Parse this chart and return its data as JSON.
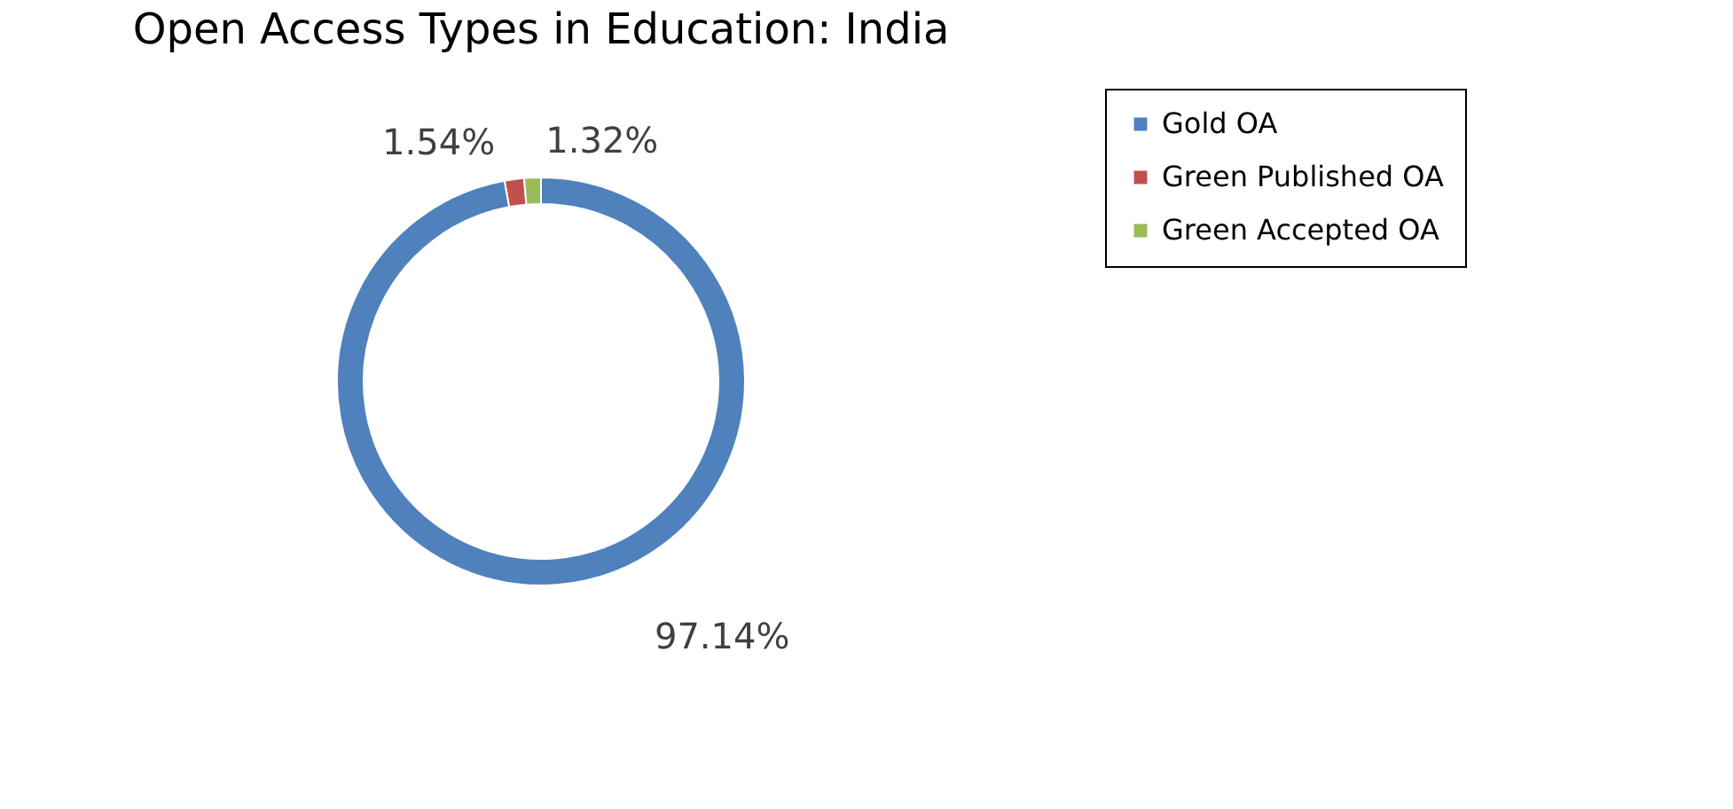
{
  "chart_data": {
    "type": "donut",
    "title": "Open Access Types in Education: India",
    "categories": [
      "Gold OA",
      "Green Published OA",
      "Green Accepted OA"
    ],
    "values": [
      97.14,
      1.54,
      1.32
    ],
    "colors": [
      "#4f81bd",
      "#c0504d",
      "#9bbb59"
    ],
    "value_labels": [
      "97.14%",
      "1.54%",
      "1.32%"
    ],
    "legend": "right"
  }
}
